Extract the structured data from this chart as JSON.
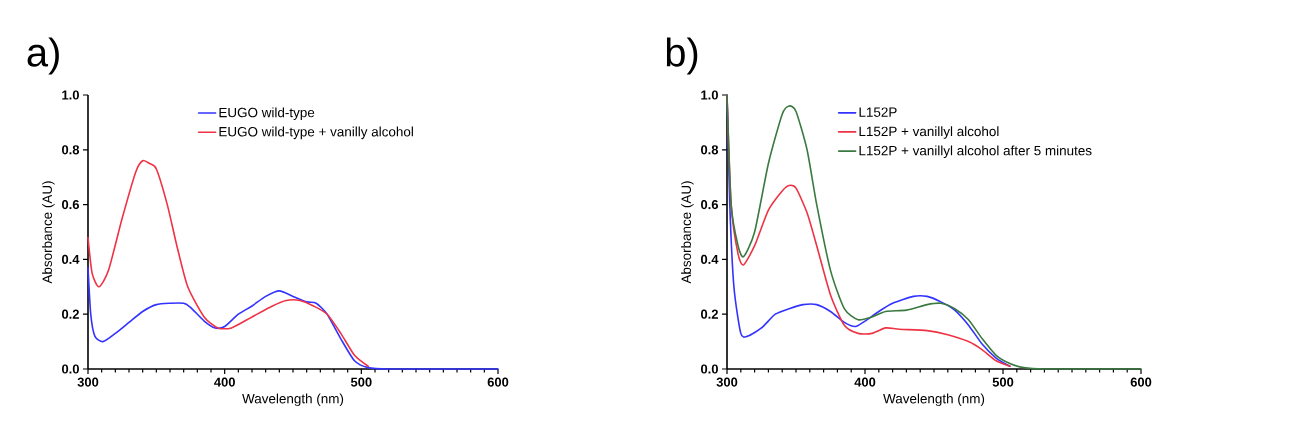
{
  "chart_data": [
    {
      "type": "line",
      "title": "a)",
      "xlabel": "Wavelength (nm)",
      "ylabel": "Absorbance (AU)",
      "xlim": [
        300,
        600
      ],
      "ylim": [
        0,
        1.0
      ],
      "xticks": [
        300,
        400,
        500,
        600
      ],
      "yticks": [
        {
          "value": 0,
          "label": "0.0"
        },
        {
          "value": 0.2,
          "label": "0.2"
        },
        {
          "value": 0.4,
          "label": "0.4"
        },
        {
          "value": 0.6,
          "label": "0.6"
        },
        {
          "value": 0.8,
          "label": "0.8"
        },
        {
          "value": 1.0,
          "label": "1.0"
        }
      ],
      "legend": "top right",
      "series": [
        {
          "name": "EUGO wild-type",
          "color": "#3333ff",
          "x": [
            300,
            302,
            305,
            311,
            320,
            330,
            340,
            350,
            360,
            370,
            375,
            385,
            393,
            400,
            410,
            420,
            430,
            440,
            450,
            460,
            467,
            475,
            485,
            495,
            505,
            520,
            600
          ],
          "values": [
            0.37,
            0.2,
            0.12,
            0.1,
            0.13,
            0.17,
            0.21,
            0.235,
            0.24,
            0.24,
            0.225,
            0.175,
            0.15,
            0.155,
            0.2,
            0.23,
            0.265,
            0.285,
            0.265,
            0.245,
            0.24,
            0.2,
            0.11,
            0.03,
            0.005,
            0,
            0
          ]
        },
        {
          "name": "EUGO wild-type + vanilly alcohol",
          "color": "#ee3344",
          "x": [
            300,
            303,
            308,
            315,
            325,
            335,
            340,
            345,
            350,
            358,
            365,
            373,
            385,
            395,
            405,
            420,
            435,
            445,
            455,
            465,
            475,
            485,
            495,
            505
          ],
          "values": [
            0.48,
            0.35,
            0.3,
            0.36,
            0.55,
            0.72,
            0.76,
            0.75,
            0.73,
            0.6,
            0.45,
            0.3,
            0.19,
            0.15,
            0.15,
            0.19,
            0.23,
            0.25,
            0.25,
            0.23,
            0.2,
            0.13,
            0.05,
            0.01
          ]
        }
      ]
    },
    {
      "type": "line",
      "title": "b)",
      "xlabel": "Wavelength (nm)",
      "ylabel": "Absorbance (AU)",
      "xlim": [
        300,
        600
      ],
      "ylim": [
        0,
        1.0
      ],
      "xticks": [
        300,
        400,
        500,
        600
      ],
      "yticks": [
        {
          "value": 0,
          "label": "0.0"
        },
        {
          "value": 0.2,
          "label": "0.2"
        },
        {
          "value": 0.4,
          "label": "0.4"
        },
        {
          "value": 0.6,
          "label": "0.6"
        },
        {
          "value": 0.8,
          "label": "0.8"
        },
        {
          "value": 1.0,
          "label": "1.0"
        }
      ],
      "legend": "top right",
      "series": [
        {
          "name": "L152P",
          "color": "#3333ff",
          "x": [
            300,
            302,
            305,
            310,
            315,
            325,
            335,
            345,
            355,
            365,
            375,
            385,
            393,
            400,
            410,
            420,
            435,
            445,
            455,
            465,
            475,
            485,
            495,
            505
          ],
          "values": [
            1.0,
            0.6,
            0.3,
            0.13,
            0.12,
            0.15,
            0.2,
            0.22,
            0.235,
            0.235,
            0.21,
            0.17,
            0.155,
            0.175,
            0.21,
            0.24,
            0.265,
            0.265,
            0.245,
            0.215,
            0.16,
            0.09,
            0.04,
            0.01
          ]
        },
        {
          "name": "L152P + vanillyl alcohol",
          "color": "#ee3344",
          "x": [
            300,
            303,
            308,
            312,
            320,
            330,
            340,
            345,
            350,
            358,
            365,
            375,
            385,
            395,
            405,
            415,
            425,
            445,
            460,
            475,
            485,
            495,
            505
          ],
          "values": [
            1.0,
            0.6,
            0.42,
            0.38,
            0.45,
            0.58,
            0.65,
            0.67,
            0.66,
            0.57,
            0.45,
            0.27,
            0.16,
            0.13,
            0.13,
            0.15,
            0.145,
            0.14,
            0.125,
            0.1,
            0.07,
            0.03,
            0.01
          ]
        },
        {
          "name": "L152P + vanillyl alcohol after 5 minutes",
          "color": "#3a7a40",
          "x": [
            300,
            303,
            308,
            312,
            320,
            330,
            340,
            345,
            350,
            358,
            365,
            375,
            385,
            395,
            405,
            415,
            430,
            445,
            455,
            465,
            475,
            485,
            495,
            505,
            515,
            530,
            600
          ],
          "values": [
            1.0,
            0.6,
            0.45,
            0.41,
            0.5,
            0.75,
            0.93,
            0.96,
            0.94,
            0.8,
            0.6,
            0.36,
            0.22,
            0.18,
            0.19,
            0.21,
            0.215,
            0.235,
            0.24,
            0.22,
            0.18,
            0.11,
            0.05,
            0.02,
            0.005,
            0,
            0
          ]
        }
      ]
    }
  ]
}
